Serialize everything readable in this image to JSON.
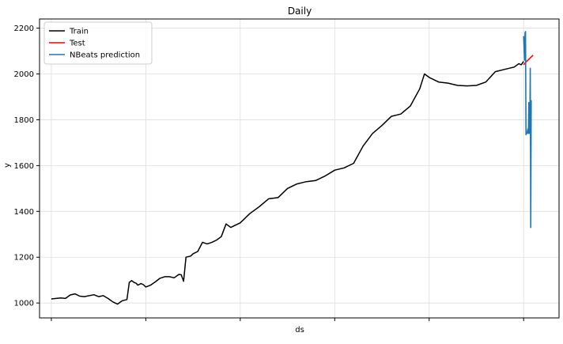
{
  "chart_data": {
    "type": "line",
    "title": "Daily",
    "xlabel": "ds",
    "ylabel": "y",
    "ylim": [
      935,
      2240
    ],
    "y_ticks": [
      1000,
      1200,
      1400,
      1600,
      1800,
      2000,
      2200
    ],
    "x_range": [
      -25,
      1075
    ],
    "x_tick_positions": [
      0,
      200,
      400,
      600,
      800,
      1000
    ],
    "x_tick_labels": [
      "",
      "",
      "",
      "",
      "",
      ""
    ],
    "grid": true,
    "legend_position": "top-left",
    "series": [
      {
        "name": "Train",
        "color": "#000000",
        "x": [
          0,
          20,
          30,
          40,
          50,
          60,
          70,
          90,
          100,
          110,
          120,
          130,
          140,
          150,
          160,
          165,
          170,
          175,
          180,
          183,
          190,
          195,
          200,
          210,
          220,
          230,
          240,
          250,
          260,
          270,
          275,
          280,
          285,
          295,
          300,
          310,
          320,
          330,
          340,
          350,
          360,
          370,
          380,
          400,
          420,
          440,
          460,
          480,
          500,
          520,
          540,
          560,
          580,
          600,
          620,
          640,
          660,
          680,
          700,
          720,
          740,
          760,
          780,
          790,
          800,
          820,
          840,
          860,
          880,
          900,
          920,
          940,
          960,
          980,
          990,
          995,
          1000
        ],
        "y": [
          1018,
          1022,
          1020,
          1035,
          1040,
          1030,
          1028,
          1036,
          1028,
          1032,
          1020,
          1005,
          995,
          1010,
          1015,
          1090,
          1098,
          1090,
          1086,
          1078,
          1085,
          1080,
          1070,
          1078,
          1092,
          1108,
          1115,
          1115,
          1110,
          1125,
          1123,
          1095,
          1200,
          1205,
          1215,
          1225,
          1265,
          1258,
          1265,
          1275,
          1290,
          1345,
          1330,
          1350,
          1390,
          1420,
          1455,
          1460,
          1500,
          1520,
          1530,
          1535,
          1555,
          1580,
          1590,
          1610,
          1685,
          1740,
          1775,
          1815,
          1825,
          1860,
          1935,
          2000,
          1985,
          1965,
          1960,
          1950,
          1948,
          1950,
          1965,
          2010,
          2020,
          2030,
          2045,
          2040,
          2055
        ]
      },
      {
        "name": "Test",
        "color": "#ff0000",
        "x": [
          1000,
          1004,
          1008,
          1012,
          1016,
          1020
        ],
        "y": [
          2040,
          2050,
          2058,
          2066,
          2074,
          2082
        ]
      },
      {
        "name": "NBeats prediction",
        "color": "#1f77b4",
        "x": [
          1000,
          1002,
          1003,
          1004,
          1005,
          1006,
          1007,
          1008,
          1009,
          1010,
          1011,
          1012,
          1013,
          1014,
          1015,
          1016
        ],
        "y": [
          2165,
          2060,
          2180,
          2185,
          1735,
          1745,
          1740,
          1750,
          1760,
          1740,
          1875,
          1745,
          1740,
          2025,
          1330,
          1885
        ]
      }
    ]
  }
}
